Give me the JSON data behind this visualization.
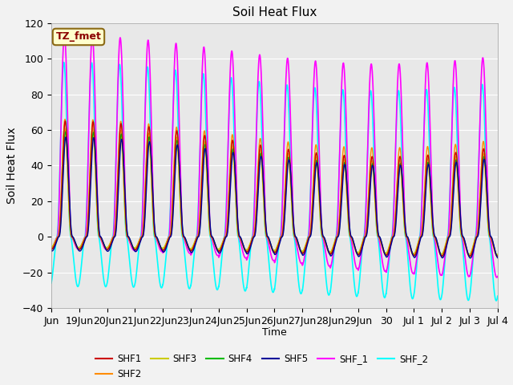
{
  "title": "Soil Heat Flux",
  "ylabel": "Soil Heat Flux",
  "xlabel": "Time",
  "ylim": [
    -40,
    120
  ],
  "annotation": "TZ_fmet",
  "annotation_color": "#8B0000",
  "annotation_bg": "#FFFFCC",
  "annotation_edge": "#8B6914",
  "bg_color": "#E8E8E8",
  "fig_bg": "#F2F2F2",
  "series_order": [
    "SHF_2",
    "SHF_1",
    "SHF2",
    "SHF3",
    "SHF4",
    "SHF1",
    "SHF5"
  ],
  "series": {
    "SHF1": {
      "color": "#CC0000",
      "lw": 1.0
    },
    "SHF2": {
      "color": "#FF8C00",
      "lw": 1.0
    },
    "SHF3": {
      "color": "#CCCC00",
      "lw": 1.0
    },
    "SHF4": {
      "color": "#00BB00",
      "lw": 1.0
    },
    "SHF5": {
      "color": "#000099",
      "lw": 1.0
    },
    "SHF_1": {
      "color": "#FF00FF",
      "lw": 1.2
    },
    "SHF_2": {
      "color": "#00FFFF",
      "lw": 1.2
    }
  },
  "legend_order": [
    "SHF1",
    "SHF2",
    "SHF3",
    "SHF4",
    "SHF5",
    "SHF_1",
    "SHF_2"
  ],
  "n_days": 16,
  "points_per_day": 288,
  "x_tick_labels": [
    "Jun",
    "19Jun",
    "20Jun",
    "21Jun",
    "22Jun",
    "23Jun",
    "24Jun",
    "25Jun",
    "26Jun",
    "27Jun",
    "28Jun",
    "29Jun",
    "30",
    "Jul 1",
    "Jul 2",
    "Jul 3",
    "Jul 4"
  ],
  "grid_color": "#FFFFFF",
  "grid_lw": 0.8
}
